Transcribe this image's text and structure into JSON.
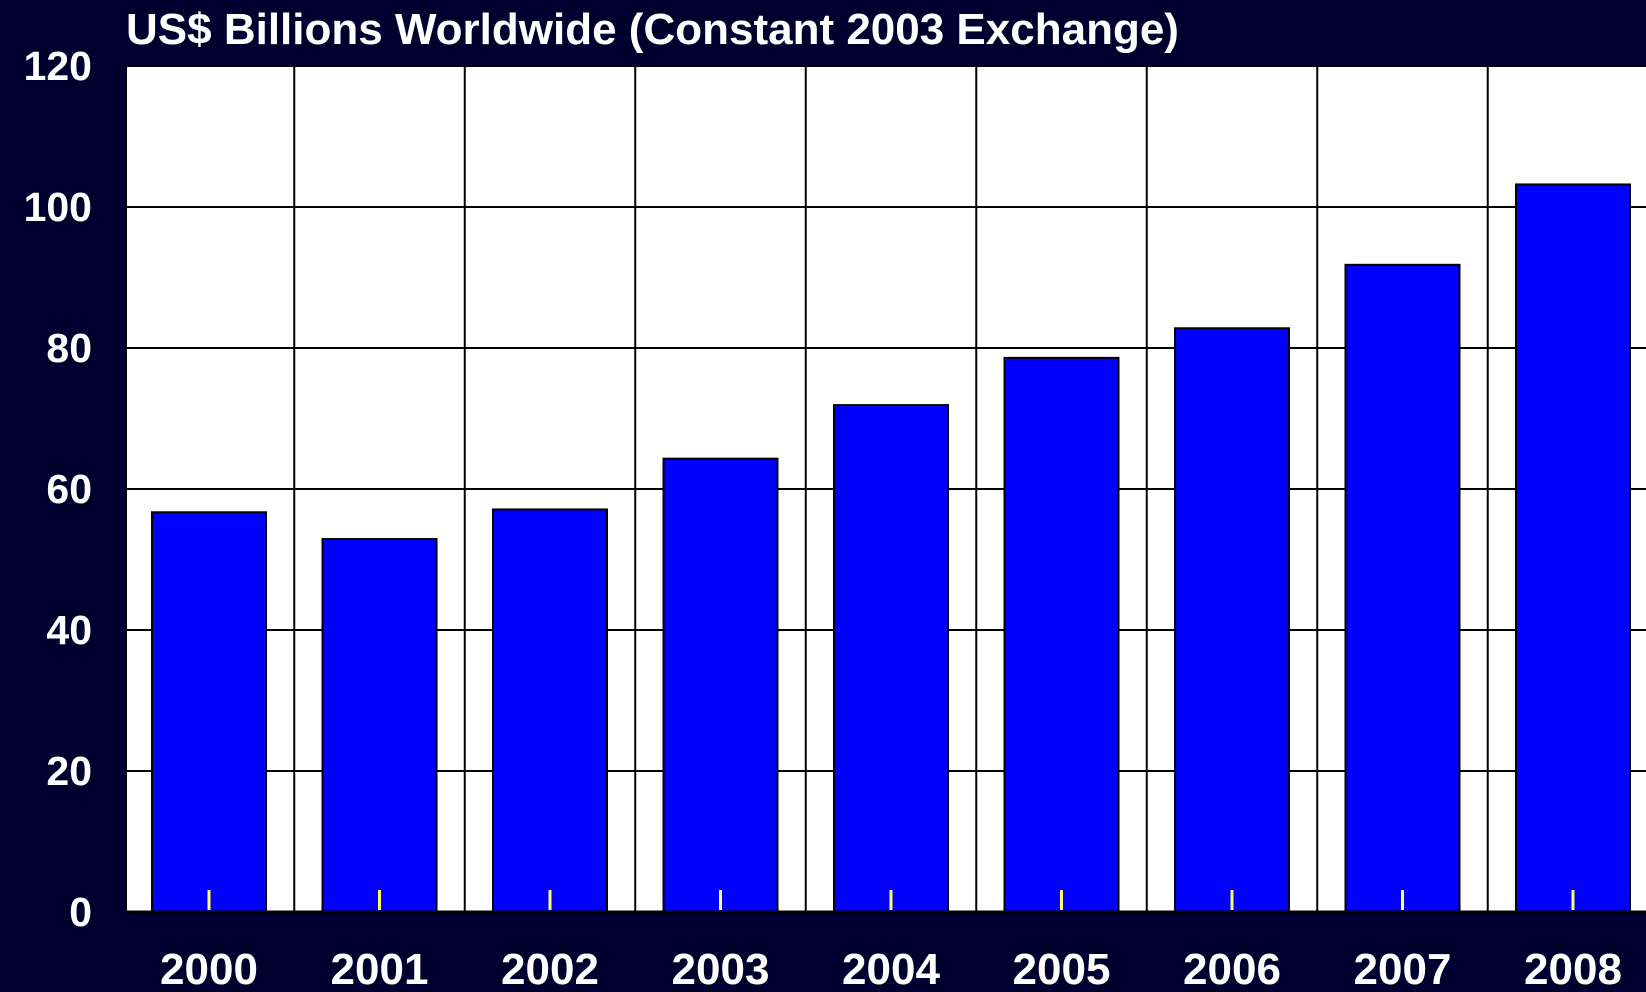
{
  "chart_data": {
    "type": "bar",
    "title": "US$ Billions Worldwide (Constant 2003 Exchange)",
    "xlabel": "",
    "ylabel": "",
    "categories": [
      "2000",
      "2001",
      "2002",
      "2003",
      "2004",
      "2005",
      "2006",
      "2007",
      "2008"
    ],
    "values": [
      56.7,
      52.9,
      57.1,
      64.3,
      71.9,
      78.6,
      82.8,
      91.8,
      103.2
    ],
    "ylim": [
      0,
      120
    ],
    "yticks": [
      "0",
      "20",
      "40",
      "60",
      "80",
      "100",
      "120"
    ],
    "grid": true,
    "legend": "none",
    "colors": {
      "background": "#00002e",
      "plot_area": "#ffffff",
      "bar": "#0000ff",
      "grid": "#000000",
      "marker": "#ffff66"
    }
  }
}
